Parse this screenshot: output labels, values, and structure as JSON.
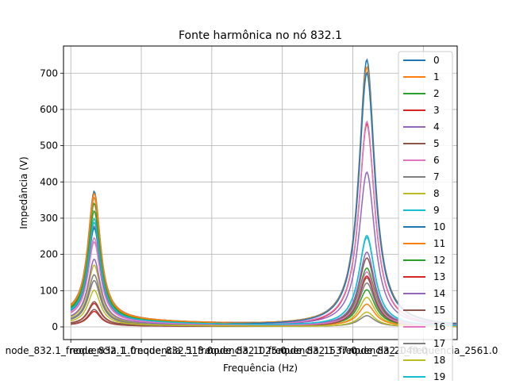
{
  "chart_data": {
    "type": "line",
    "title": "Fonte harmônica no nó 832.1",
    "xlabel": "Frequência (Hz)",
    "ylabel": "Impedância (V)",
    "ylim": [
      -35,
      775
    ],
    "xlim": [
      -53,
      2806
    ],
    "grid": true,
    "legend_position": "right",
    "xticks": [
      {
        "value": 0,
        "label": "node_832.1_frequencia_1.0"
      },
      {
        "value": 512,
        "label": "node_832.1_frequencia_513.0"
      },
      {
        "value": 1024,
        "label": "node_832.1_frequencia_1025.0"
      },
      {
        "value": 1536,
        "label": "node_832.1_frequencia_1537.0"
      },
      {
        "value": 2048,
        "label": "node_832.1_frequencia_2049.0"
      },
      {
        "value": 2560,
        "label": "node_832.1_frequencia_2561.0"
      }
    ],
    "yticks": [
      0,
      100,
      200,
      300,
      400,
      500,
      600,
      700
    ],
    "series_names": [
      "0",
      "1",
      "2",
      "3",
      "4",
      "5",
      "6",
      "7",
      "8",
      "9",
      "10",
      "11",
      "12",
      "13",
      "14",
      "15",
      "16",
      "17",
      "18",
      "19"
    ],
    "colors": [
      "#1f77b4",
      "#ff7f0e",
      "#2ca02c",
      "#d62728",
      "#9467bd",
      "#8c564b",
      "#e377c2",
      "#7f7f7f",
      "#bcbd22",
      "#17becf"
    ],
    "series": [
      {
        "name": "0",
        "peak1": 350,
        "peak2": 735
      },
      {
        "name": "1",
        "peak1": 345,
        "peak2": 715
      },
      {
        "name": "2",
        "peak1": 320,
        "peak2": 160
      },
      {
        "name": "3",
        "peak1": 60,
        "peak2": 560
      },
      {
        "name": "4",
        "peak1": 260,
        "peak2": 425
      },
      {
        "name": "5",
        "peak1": 65,
        "peak2": 190
      },
      {
        "name": "6",
        "peak1": 230,
        "peak2": 565
      },
      {
        "name": "7",
        "peak1": 135,
        "peak2": 120
      },
      {
        "name": "8",
        "peak1": 160,
        "peak2": 80
      },
      {
        "name": "9",
        "peak1": 280,
        "peak2": 250
      },
      {
        "name": "10",
        "peak1": 255,
        "peak2": 700
      },
      {
        "name": "11",
        "peak1": 335,
        "peak2": 60
      },
      {
        "name": "12",
        "peak1": 300,
        "peak2": 100
      },
      {
        "name": "13",
        "peak1": 40,
        "peak2": 140
      },
      {
        "name": "14",
        "peak1": 175,
        "peak2": 205
      },
      {
        "name": "15",
        "peak1": 45,
        "peak2": 135
      },
      {
        "name": "16",
        "peak1": 220,
        "peak2": 150
      },
      {
        "name": "17",
        "peak1": 120,
        "peak2": 30
      },
      {
        "name": "18",
        "peak1": 95,
        "peak2": 40
      },
      {
        "name": "19",
        "peak1": 270,
        "peak2": 245
      }
    ]
  }
}
